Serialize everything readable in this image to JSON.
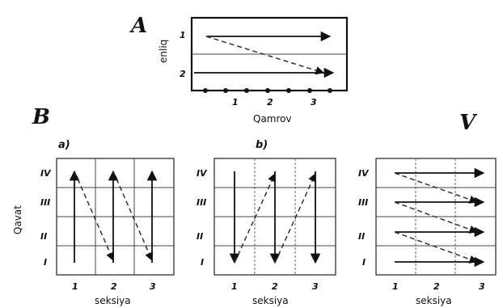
{
  "panel_a": {
    "letter": "A",
    "xlabel": "Qamrov",
    "ylabel": "enliq",
    "x_ticks": [
      "1",
      "2",
      "3"
    ],
    "y_ticks": [
      "1",
      "2"
    ]
  },
  "panel_b": {
    "letter": "B",
    "ylabel": "Qavat",
    "sub_a": {
      "label": "a)",
      "xlabel": "seksiya",
      "x_ticks": [
        "1",
        "2",
        "3"
      ],
      "y_ticks": [
        "IV",
        "III",
        "II",
        "I"
      ]
    },
    "sub_b": {
      "label": "b)",
      "xlabel": "seksiya",
      "x_ticks": [
        "1",
        "2",
        "3"
      ],
      "y_ticks": [
        "IV",
        "III",
        "II",
        "I"
      ]
    }
  },
  "panel_v": {
    "letter": "V",
    "xlabel": "seksiya",
    "x_ticks": [
      "1",
      "2",
      "3"
    ],
    "y_ticks": [
      "IV",
      "III",
      "II",
      "I"
    ]
  }
}
